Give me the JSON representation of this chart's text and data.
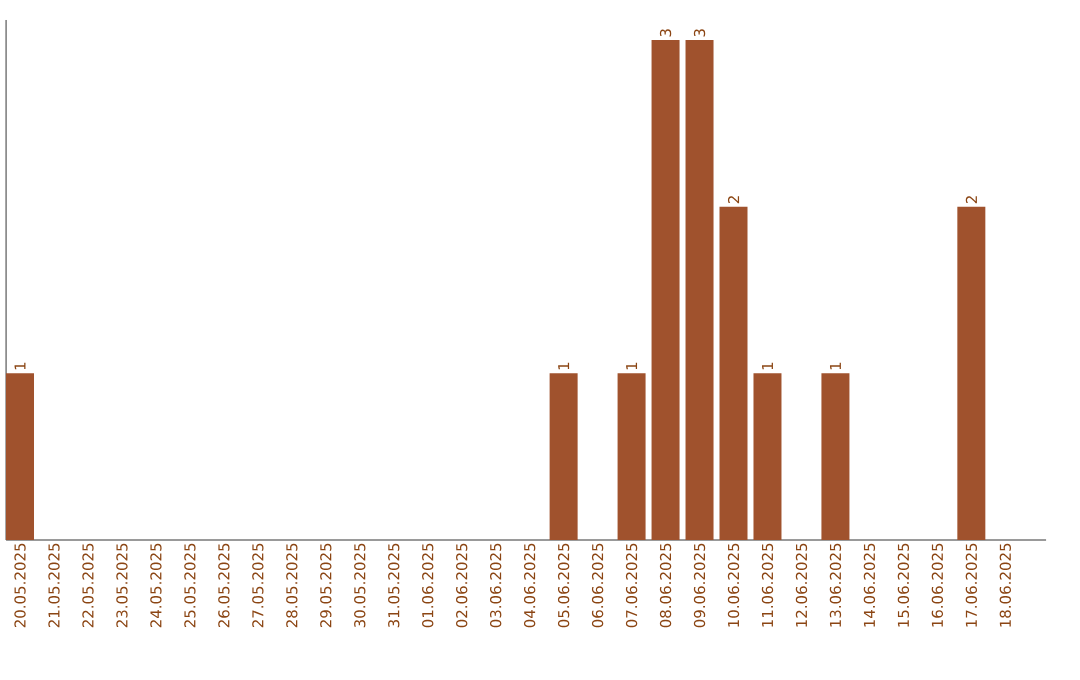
{
  "chart_data": {
    "type": "bar",
    "categories": [
      "20.05.2025",
      "21.05.2025",
      "22.05.2025",
      "23.05.2025",
      "24.05.2025",
      "25.05.2025",
      "26.05.2025",
      "27.05.2025",
      "28.05.2025",
      "29.05.2025",
      "30.05.2025",
      "31.05.2025",
      "01.06.2025",
      "02.06.2025",
      "03.06.2025",
      "04.06.2025",
      "05.06.2025",
      "06.06.2025",
      "07.06.2025",
      "08.06.2025",
      "09.06.2025",
      "10.06.2025",
      "11.06.2025",
      "12.06.2025",
      "13.06.2025",
      "14.06.2025",
      "15.06.2025",
      "16.06.2025",
      "17.06.2025",
      "18.06.2025"
    ],
    "values": [
      1,
      0,
      0,
      0,
      0,
      0,
      0,
      0,
      0,
      0,
      0,
      0,
      0,
      0,
      0,
      0,
      1,
      0,
      1,
      3,
      3,
      2,
      1,
      0,
      1,
      0,
      0,
      0,
      2,
      0
    ],
    "value_labels": [
      "1",
      null,
      null,
      null,
      null,
      null,
      null,
      null,
      null,
      null,
      null,
      null,
      null,
      null,
      null,
      null,
      "1",
      null,
      "1",
      "3",
      "3",
      "2",
      "1",
      null,
      "1",
      null,
      null,
      null,
      "2",
      null
    ],
    "color": "#a0522d",
    "grid": false
  }
}
